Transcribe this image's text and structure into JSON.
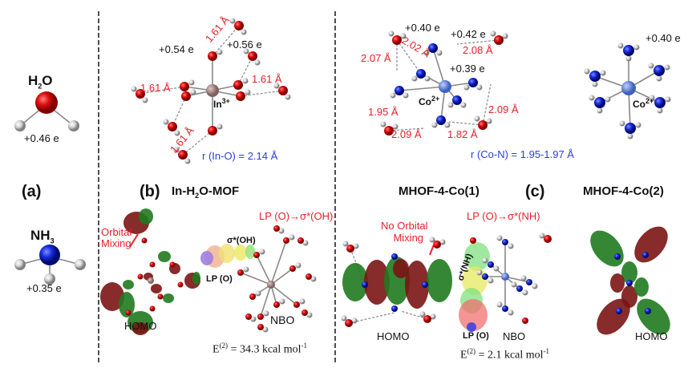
{
  "panel_a": {
    "label": "(a)",
    "h2o": {
      "formula": "H",
      "sub": "2",
      "tail": "O",
      "charge": "+0.46 e"
    },
    "nh3": {
      "formula": "NH",
      "sub": "3",
      "charge": "+0.35 e"
    }
  },
  "panel_b": {
    "label": "(b)",
    "title_pre": "In-H",
    "title_sub": "2",
    "title_post": "O-MOF",
    "charges": [
      "+0.54 e",
      "+0.56 e"
    ],
    "distances": [
      "1.61 Å",
      "1.61 Å",
      "1.61 Å",
      "1.61 Å"
    ],
    "metal": "In",
    "metal_sup": "3+",
    "bond": "r (In-O) = 2.14 Å",
    "orbital_mixing": [
      "Orbital",
      "Mixing"
    ],
    "nbo_title": "LP (O)→σ*(OH)",
    "sigma_label": "σ*(OH)",
    "lp_label": "LP (O)",
    "homo": "HOMO",
    "nbo": "NBO",
    "energy": {
      "prefix": "E",
      "sup": "(2)",
      "text": " = 34.3 kcal mol",
      "unit_sup": "-1"
    }
  },
  "panel_c": {
    "label": "(c)",
    "co1": {
      "title": "MHOF-4-Co(1)",
      "charges": [
        "+0.40 e",
        "+0.42 e",
        "+0.39 e"
      ],
      "distances": [
        "2.02 Å",
        "2.08 Å",
        "2.07 Å",
        "1.95 Å",
        "2.09 Å",
        "2.09 Å",
        "1.82 Å"
      ],
      "metal": "Co",
      "metal_sup": "2+",
      "bond": "r (Co-N) = 1.95-1.97 Å",
      "no_mixing": [
        "No Orbital",
        "Mixing"
      ],
      "nbo_title": "LP (O)→σ*(NH)",
      "sigma_label": "σ*(NH)",
      "lp_label": "LP (O)",
      "homo": "HOMO",
      "nbo": "NBO",
      "energy": {
        "prefix": "E",
        "sup": "(2)",
        "text": " = 2.1 kcal mol",
        "unit_sup": "-1"
      }
    },
    "co2": {
      "title": "MHOF-4-Co(2)",
      "charge": "+0.40 e",
      "metal": "Co",
      "metal_sup": "2+",
      "homo": "HOMO"
    }
  },
  "colors": {
    "oxygen": "#e01010",
    "nitrogen": "#1a2ee0",
    "hydrogen": "#d8d8d8",
    "indium": "#a08080",
    "cobalt": "#7090e0",
    "lobe_green": "#1f7a1f",
    "lobe_red": "#7a1414",
    "distance_text": "#e8202a",
    "bond_text": "#2a3ee0"
  }
}
